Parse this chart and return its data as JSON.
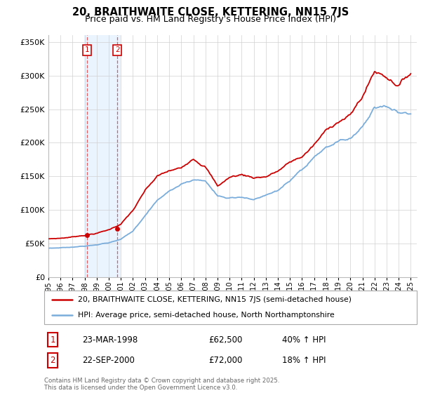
{
  "title": "20, BRAITHWAITE CLOSE, KETTERING, NN15 7JS",
  "subtitle": "Price paid vs. HM Land Registry's House Price Index (HPI)",
  "legend_line1": "20, BRAITHWAITE CLOSE, KETTERING, NN15 7JS (semi-detached house)",
  "legend_line2": "HPI: Average price, semi-detached house, North Northamptonshire",
  "annotation1_label": "1",
  "annotation1_date": "23-MAR-1998",
  "annotation1_price": "£62,500",
  "annotation1_hpi": "40% ↑ HPI",
  "annotation2_label": "2",
  "annotation2_date": "22-SEP-2000",
  "annotation2_price": "£72,000",
  "annotation2_hpi": "18% ↑ HPI",
  "footer": "Contains HM Land Registry data © Crown copyright and database right 2025.\nThis data is licensed under the Open Government Licence v3.0.",
  "price_color": "#cc0000",
  "hpi_color": "#7aaddb",
  "shade_color": "#ddeeff",
  "vline_color": "#dd4444",
  "ylim": [
    0,
    360000
  ],
  "yticks": [
    0,
    50000,
    100000,
    150000,
    200000,
    250000,
    300000,
    350000
  ],
  "sale1_year": 1998.21,
  "sale2_year": 2000.71,
  "sale1_price": 62500,
  "sale2_price": 72000,
  "hpi_years": [
    1995,
    1996,
    1997,
    1998,
    1999,
    2000,
    2001,
    2002,
    2003,
    2004,
    2005,
    2006,
    2007,
    2008,
    2009,
    2010,
    2011,
    2012,
    2013,
    2014,
    2015,
    2016,
    2017,
    2018,
    2019,
    2020,
    2021,
    2022,
    2023,
    2024,
    2025
  ],
  "hpi_vals": [
    43000,
    44000,
    45000,
    47000,
    50000,
    53000,
    58000,
    70000,
    95000,
    118000,
    132000,
    143000,
    150000,
    148000,
    125000,
    122000,
    125000,
    120000,
    125000,
    132000,
    145000,
    158000,
    175000,
    188000,
    195000,
    200000,
    218000,
    248000,
    250000,
    243000,
    243000
  ],
  "price_years": [
    1995,
    1996,
    1997,
    1998,
    1999,
    2000,
    2001,
    2002,
    2003,
    2004,
    2005,
    2006,
    2007,
    2008,
    2009,
    2010,
    2011,
    2012,
    2013,
    2014,
    2015,
    2016,
    2017,
    2018,
    2019,
    2020,
    2021,
    2022,
    2023,
    2024,
    2025
  ],
  "price_vals": [
    57000,
    58000,
    60000,
    63000,
    66000,
    71000,
    80000,
    100000,
    128000,
    148000,
    155000,
    158000,
    175000,
    165000,
    135000,
    148000,
    152000,
    148000,
    150000,
    158000,
    170000,
    178000,
    195000,
    215000,
    230000,
    238000,
    265000,
    302000,
    295000,
    285000,
    303000
  ]
}
